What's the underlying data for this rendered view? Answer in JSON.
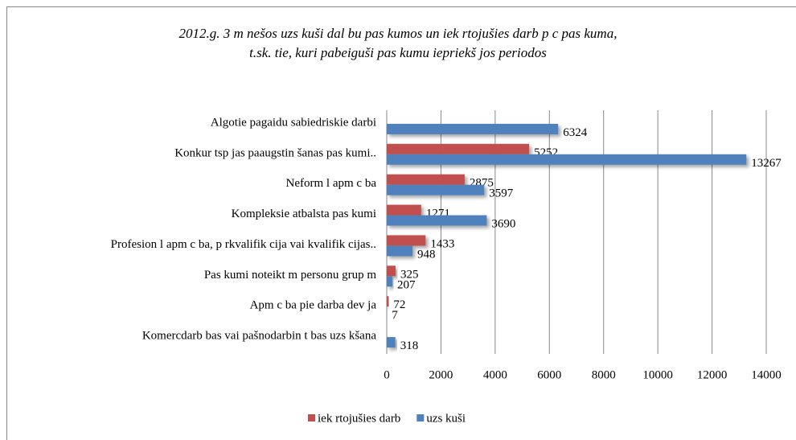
{
  "chart_data": {
    "type": "bar",
    "orientation": "horizontal",
    "title": [
      "2012.g. 3 m nešos uzs kuši dal bu pas kumos un iek rtojušies darb p c pas kuma,",
      "t.sk. tie, kuri pabeiguši pas kumu iepriekš jos periodos"
    ],
    "categories": [
      "Algotie pagaidu sabiedriskie darbi",
      "Konkur tsp jas paaugstin šanas pas kumi..",
      "Neform l apm c ba",
      "Kompleksie atbalsta pas kumi",
      "Profesion l apm c ba, p rkvalifik cija vai kvalifik cijas..",
      "Pas kumi noteikt m personu grup m",
      "Apm c ba pie darba dev ja",
      "Komercdarb bas vai pašnodarbin t bas uzs kšana"
    ],
    "series": [
      {
        "name": "iek rtojušies darb",
        "color": "#c0504d",
        "values": [
          null,
          5252,
          2875,
          1271,
          1433,
          325,
          72,
          null
        ]
      },
      {
        "name": "uzs kuši",
        "color": "#4f81bd",
        "values": [
          6324,
          13267,
          3597,
          3690,
          948,
          207,
          7,
          318
        ]
      }
    ],
    "xlim": [
      0,
      14000
    ],
    "xticks": [
      0,
      2000,
      4000,
      6000,
      8000,
      10000,
      12000,
      14000
    ],
    "grid": true,
    "legend": "bottom"
  }
}
